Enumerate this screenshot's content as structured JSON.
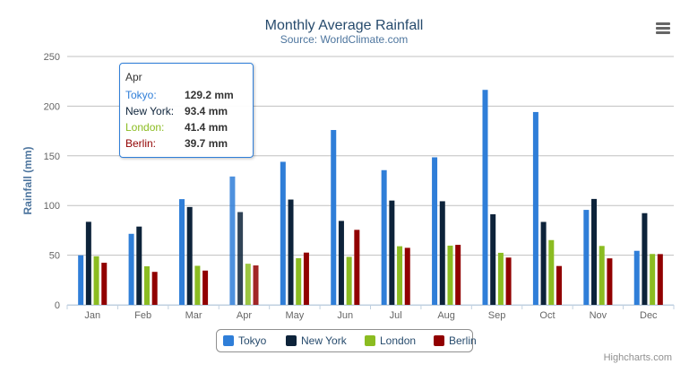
{
  "chart_data": {
    "type": "bar",
    "title": "Monthly Average Rainfall",
    "subtitle": "Source: WorldClimate.com",
    "ylabel": "Rainfall (mm)",
    "xlabel": "",
    "ylim": [
      0,
      250
    ],
    "yticks": [
      0,
      50,
      100,
      150,
      200,
      250
    ],
    "grid": true,
    "legend_placement": "bottom",
    "categories": [
      "Jan",
      "Feb",
      "Mar",
      "Apr",
      "May",
      "Jun",
      "Jul",
      "Aug",
      "Sep",
      "Oct",
      "Nov",
      "Dec"
    ],
    "series": [
      {
        "name": "Tokyo",
        "color": "#2f7ed8",
        "values": [
          49.9,
          71.5,
          106.4,
          129.2,
          144.0,
          176.0,
          135.6,
          148.5,
          216.4,
          194.1,
          95.6,
          54.4
        ]
      },
      {
        "name": "New York",
        "color": "#0d233a",
        "values": [
          83.6,
          78.8,
          98.5,
          93.4,
          106.0,
          84.5,
          105.0,
          104.3,
          91.2,
          83.5,
          106.6,
          92.3
        ]
      },
      {
        "name": "London",
        "color": "#8bbc21",
        "values": [
          48.9,
          38.8,
          39.3,
          41.4,
          47.0,
          48.3,
          59.0,
          59.6,
          52.4,
          65.2,
          59.3,
          51.2
        ]
      },
      {
        "name": "Berlin",
        "color": "#910000",
        "values": [
          42.4,
          33.2,
          34.5,
          39.7,
          52.6,
          75.5,
          57.4,
          60.4,
          47.6,
          39.1,
          46.8,
          51.1
        ]
      }
    ]
  },
  "tooltip": {
    "header": "Apr",
    "rows": [
      {
        "name": "Tokyo:",
        "value": "129.2 mm",
        "color": "#2f7ed8"
      },
      {
        "name": "New York:",
        "value": "93.4 mm",
        "color": "#0d233a"
      },
      {
        "name": "London:",
        "value": "41.4 mm",
        "color": "#8bbc21"
      },
      {
        "name": "Berlin:",
        "value": "39.7 mm",
        "color": "#910000"
      }
    ]
  },
  "credits": "Highcharts.com",
  "menu_icon": "hamburger-menu-icon",
  "title_color": "#274b6d"
}
